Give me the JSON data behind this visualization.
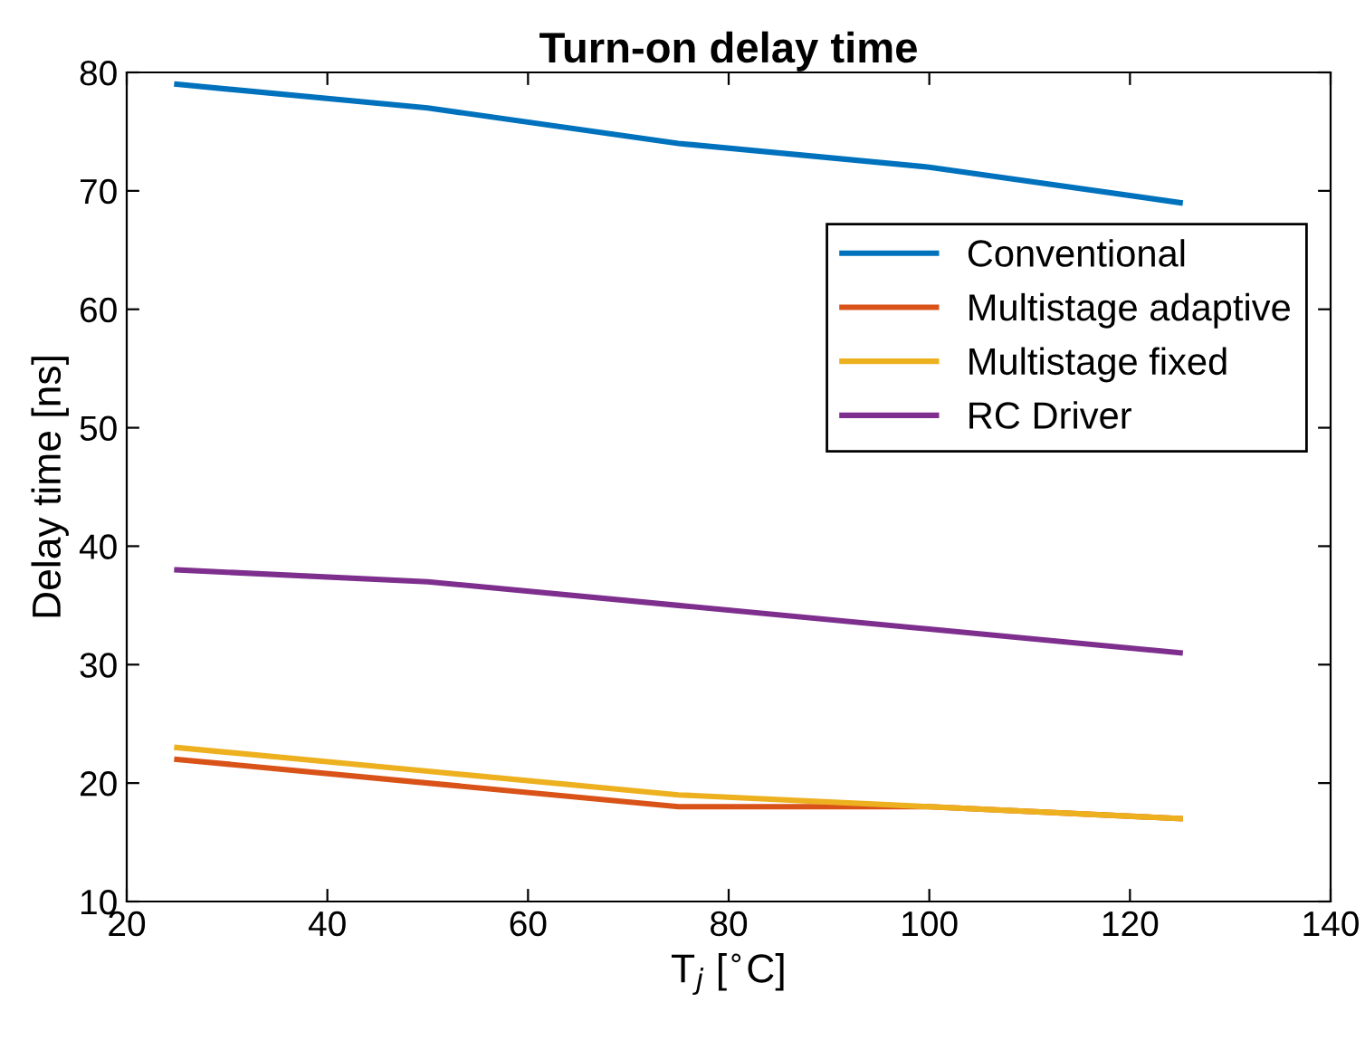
{
  "chart_data": {
    "type": "line",
    "title": "Turn-on delay time",
    "xlabel": "T$_{j}$ [$^{∘}$C]",
    "ylabel": "Delay time [ns]",
    "x": [
      25,
      50,
      75,
      100,
      125
    ],
    "series": [
      {
        "name": "Conventional",
        "color": "#0072bd",
        "values": [
          79,
          77,
          74,
          72,
          69
        ]
      },
      {
        "name": "Multistage adaptive",
        "color": "#d95319",
        "values": [
          22,
          20,
          18,
          18,
          17
        ]
      },
      {
        "name": "Multistage fixed",
        "color": "#edb120",
        "values": [
          23,
          21,
          19,
          18,
          17
        ]
      },
      {
        "name": "RC Driver",
        "color": "#7e2f8e",
        "values": [
          38,
          37,
          35,
          33,
          31
        ]
      }
    ],
    "xlim": [
      20,
      140
    ],
    "xticks": [
      20,
      40,
      60,
      80,
      100,
      120,
      140
    ],
    "ylim": [
      10,
      80
    ],
    "yticks": [
      10,
      20,
      30,
      40,
      50,
      60,
      70,
      80
    ],
    "grid": false,
    "legend": "right",
    "marker": "none",
    "line_style": "solid"
  }
}
